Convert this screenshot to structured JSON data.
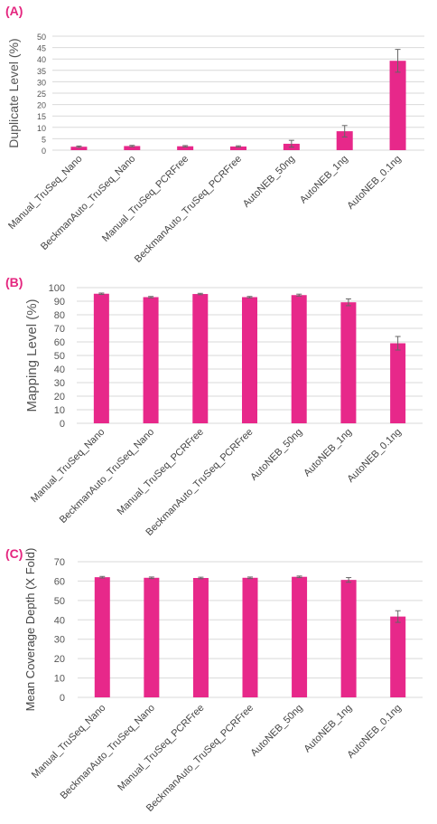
{
  "chart_data": [
    {
      "panel_label": "(A)",
      "type": "bar",
      "ylabel": "Duplicate Level (%)",
      "ylim": [
        0,
        50
      ],
      "yticks": [
        0,
        5,
        10,
        15,
        20,
        25,
        30,
        35,
        40,
        45,
        50
      ],
      "grid": true,
      "categories": [
        "Manual_TruSeq_Nano",
        "BeckmanAuto_TruSeq_Nano",
        "Manual_TruSeq_PCRFree",
        "BeckmanAuto_TruSeq_PCRFree",
        "AutoNEB_50ng",
        "AutoNEB_1ng",
        "AutoNEB_0.1ng"
      ],
      "values": [
        1.5,
        1.8,
        1.7,
        1.6,
        2.8,
        8.3,
        39.2
      ],
      "errors": [
        0.3,
        0.3,
        0.3,
        0.3,
        1.5,
        2.5,
        5.0
      ],
      "bar_color": "#e7288a"
    },
    {
      "panel_label": "(B)",
      "type": "bar",
      "ylabel": "Mapping Level (%)",
      "ylim": [
        0,
        100
      ],
      "yticks": [
        0,
        10,
        20,
        30,
        40,
        50,
        60,
        70,
        80,
        90,
        100
      ],
      "grid": true,
      "categories": [
        "Manual_TruSeq_Nano",
        "BeckmanAuto_TruSeq_Nano",
        "Manual_TruSeq_PCRFree",
        "BeckmanAuto_TruSeq_PCRFree",
        "AutoNEB_50ng",
        "AutoNEB_1ng",
        "AutoNEB_0.1ng"
      ],
      "values": [
        95.5,
        93,
        95.3,
        93,
        94.5,
        89.2,
        59
      ],
      "errors": [
        0.5,
        0.5,
        0.5,
        0.5,
        0.7,
        2.5,
        5.0
      ],
      "bar_color": "#e7288a"
    },
    {
      "panel_label": "(C)",
      "type": "bar",
      "ylabel": "Mean Coverage Depth (X Fold)",
      "ylim": [
        0,
        70
      ],
      "yticks": [
        0,
        10,
        20,
        30,
        40,
        50,
        60,
        70
      ],
      "grid": true,
      "categories": [
        "Manual_TruSeq_Nano",
        "BeckmanAuto_TruSeq_Nano",
        "Manual_TruSeq_PCRFree",
        "BeckmanAuto_TruSeq_PCRFree",
        "AutoNEB_50ng",
        "AutoNEB_1ng",
        "AutoNEB_0.1ng"
      ],
      "values": [
        62,
        61.7,
        61.6,
        61.7,
        62.2,
        60.6,
        41.7
      ],
      "errors": [
        0.4,
        0.4,
        0.4,
        0.4,
        0.4,
        1.2,
        3.0
      ],
      "bar_color": "#e7288a"
    }
  ]
}
